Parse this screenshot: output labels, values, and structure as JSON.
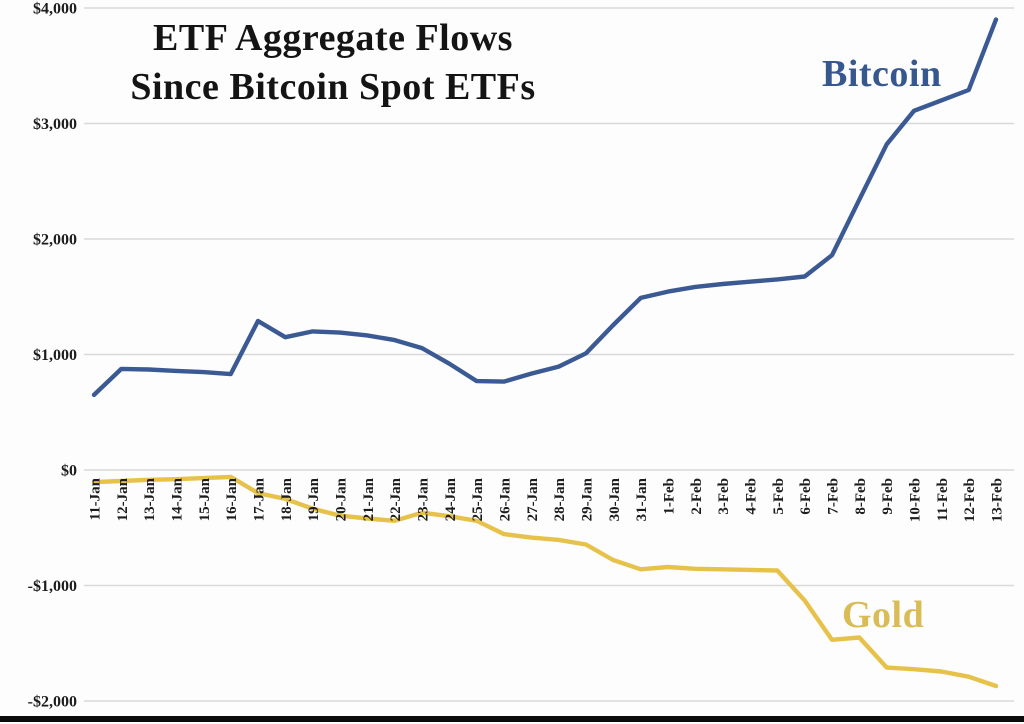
{
  "chart_data": {
    "type": "line",
    "title_line1": "ETF Aggregate Flows",
    "title_line2": "Since Bitcoin Spot ETFs",
    "categories": [
      "11-Jan",
      "12-Jan",
      "13-Jan",
      "14-Jan",
      "15-Jan",
      "16-Jan",
      "17-Jan",
      "18-Jan",
      "19-Jan",
      "20-Jan",
      "21-Jan",
      "22-Jan",
      "23-Jan",
      "24-Jan",
      "25-Jan",
      "26-Jan",
      "27-Jan",
      "28-Jan",
      "29-Jan",
      "30-Jan",
      "31-Jan",
      "1-Feb",
      "2-Feb",
      "3-Feb",
      "4-Feb",
      "5-Feb",
      "6-Feb",
      "7-Feb",
      "8-Feb",
      "9-Feb",
      "10-Feb",
      "11-Feb",
      "12-Feb",
      "13-Feb"
    ],
    "series": [
      {
        "name": "Bitcoin",
        "color": "#3b5a94",
        "label_color": "#36588f",
        "values": [
          650,
          875,
          870,
          858,
          848,
          830,
          1290,
          1150,
          1200,
          1190,
          1165,
          1125,
          1055,
          920,
          770,
          765,
          835,
          895,
          1010,
          1255,
          1490,
          1545,
          1585,
          1610,
          1630,
          1650,
          1675,
          1860,
          2340,
          2820,
          3110,
          3200,
          3290,
          3900
        ]
      },
      {
        "name": "Gold",
        "color": "#e7c24a",
        "label_color": "#d9bc56",
        "values": [
          -105,
          -95,
          -85,
          -80,
          -70,
          -60,
          -200,
          -250,
          -335,
          -395,
          -420,
          -440,
          -370,
          -400,
          -440,
          -555,
          -585,
          -605,
          -645,
          -780,
          -860,
          -840,
          -855,
          -860,
          -865,
          -870,
          -1130,
          -1470,
          -1450,
          -1710,
          -1725,
          -1745,
          -1790,
          -1870
        ]
      }
    ],
    "ylim": [
      -2000,
      4000
    ],
    "yticks": [
      {
        "label": "$4,000",
        "value": 4000
      },
      {
        "label": "$3,000",
        "value": 3000
      },
      {
        "label": "$2,000",
        "value": 2000
      },
      {
        "label": "$1,000",
        "value": 1000
      },
      {
        "label": "$0",
        "value": 0
      },
      {
        "label": "-$1,000",
        "value": -1000
      },
      {
        "label": "-$2,000",
        "value": -2000
      }
    ],
    "grid": true,
    "legend_position": "inline-labels",
    "x_label_rotation": "vertical"
  },
  "colors": {
    "background": "#fdfdfd",
    "grid": "#d9d9d9",
    "axis_text": "#1c1c1c",
    "title_text": "#141414",
    "bottom_bar": "#0c0c0c"
  }
}
